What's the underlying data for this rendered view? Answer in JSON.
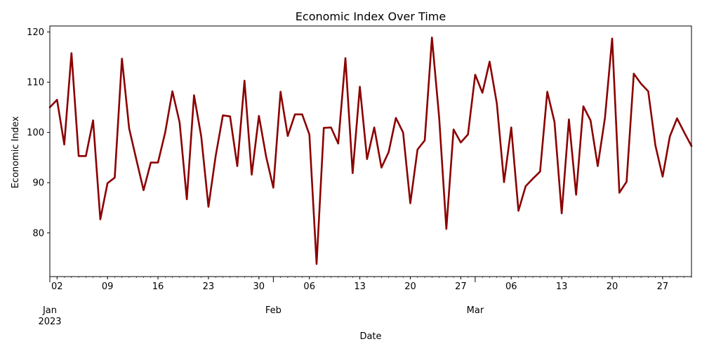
{
  "chart_data": {
    "type": "line",
    "title": "Economic Index Over Time",
    "xlabel": "Date",
    "ylabel": "Economic Index",
    "xlim": [
      "2023-01-01",
      "2023-03-31"
    ],
    "ylim": [
      71.3,
      121.2
    ],
    "grid": false,
    "line_color": "#8b0000",
    "y_ticks": [
      80,
      90,
      100,
      110,
      120
    ],
    "x_ticks_major": [
      {
        "date": "2023-01-01",
        "label": "Jan",
        "sublabel": "2023"
      },
      {
        "date": "2023-02-01",
        "label": "Feb"
      },
      {
        "date": "2023-03-01",
        "label": "Mar"
      }
    ],
    "x_ticks_minor": [
      {
        "date": "2023-01-02",
        "label": "02"
      },
      {
        "date": "2023-01-09",
        "label": "09"
      },
      {
        "date": "2023-01-16",
        "label": "16"
      },
      {
        "date": "2023-01-23",
        "label": "23"
      },
      {
        "date": "2023-01-30",
        "label": "30"
      },
      {
        "date": "2023-02-06",
        "label": "06"
      },
      {
        "date": "2023-02-13",
        "label": "13"
      },
      {
        "date": "2023-02-20",
        "label": "20"
      },
      {
        "date": "2023-02-27",
        "label": "27"
      },
      {
        "date": "2023-03-06",
        "label": "06"
      },
      {
        "date": "2023-03-13",
        "label": "13"
      },
      {
        "date": "2023-03-20",
        "label": "20"
      },
      {
        "date": "2023-03-27",
        "label": "27"
      }
    ],
    "series": [
      {
        "x": [
          "2023-01-01",
          "2023-01-02",
          "2023-01-03",
          "2023-01-04",
          "2023-01-05",
          "2023-01-06",
          "2023-01-07",
          "2023-01-08",
          "2023-01-09",
          "2023-01-10",
          "2023-01-11",
          "2023-01-12",
          "2023-01-13",
          "2023-01-14",
          "2023-01-15",
          "2023-01-16",
          "2023-01-17",
          "2023-01-18",
          "2023-01-19",
          "2023-01-20",
          "2023-01-21",
          "2023-01-22",
          "2023-01-23",
          "2023-01-24",
          "2023-01-25",
          "2023-01-26",
          "2023-01-27",
          "2023-01-28",
          "2023-01-29",
          "2023-01-30",
          "2023-01-31",
          "2023-02-01",
          "2023-02-02",
          "2023-02-03",
          "2023-02-04",
          "2023-02-05",
          "2023-02-06",
          "2023-02-07",
          "2023-02-08",
          "2023-02-09",
          "2023-02-10",
          "2023-02-11",
          "2023-02-12",
          "2023-02-13",
          "2023-02-14",
          "2023-02-15",
          "2023-02-16",
          "2023-02-17",
          "2023-02-18",
          "2023-02-19",
          "2023-02-20",
          "2023-02-21",
          "2023-02-22",
          "2023-02-23",
          "2023-02-24",
          "2023-02-25",
          "2023-02-26",
          "2023-02-27",
          "2023-02-28",
          "2023-03-01",
          "2023-03-02",
          "2023-03-03",
          "2023-03-04",
          "2023-03-05",
          "2023-03-06",
          "2023-03-07",
          "2023-03-08",
          "2023-03-09",
          "2023-03-10",
          "2023-03-11",
          "2023-03-12",
          "2023-03-13",
          "2023-03-14",
          "2023-03-15",
          "2023-03-16",
          "2023-03-17",
          "2023-03-18",
          "2023-03-19",
          "2023-03-20",
          "2023-03-21",
          "2023-03-22",
          "2023-03-23",
          "2023-03-24",
          "2023-03-25",
          "2023-03-26",
          "2023-03-27",
          "2023-03-28",
          "2023-03-29",
          "2023-03-30",
          "2023-03-31"
        ],
        "values": [
          105.0,
          106.5,
          97.6,
          115.8,
          95.3,
          95.3,
          102.4,
          82.7,
          89.9,
          91.0,
          114.7,
          100.8,
          94.6,
          88.5,
          94.0,
          94.0,
          100.0,
          108.2,
          102.0,
          86.7,
          107.4,
          99.2,
          85.2,
          95.3,
          103.4,
          103.2,
          93.3,
          110.3,
          91.6,
          103.3,
          95.2,
          89.0,
          108.1,
          99.3,
          103.6,
          103.6,
          99.6,
          73.8,
          100.9,
          101.0,
          97.8,
          114.8,
          91.9,
          109.1,
          94.7,
          101.0,
          93.0,
          96.1,
          102.9,
          100.0,
          85.9,
          96.6,
          98.4,
          118.9,
          103.0,
          80.8,
          100.6,
          98.0,
          99.6,
          111.5,
          107.9,
          114.1,
          105.8,
          90.1,
          101.0,
          84.4,
          89.3,
          90.8,
          92.2,
          108.1,
          102.1,
          83.9,
          102.6,
          87.6,
          105.2,
          102.4,
          93.3,
          102.9,
          118.7,
          88.0,
          90.2,
          111.7,
          109.7,
          108.2,
          97.4,
          91.2,
          99.2,
          102.8,
          100.0,
          97.3
        ]
      }
    ]
  }
}
